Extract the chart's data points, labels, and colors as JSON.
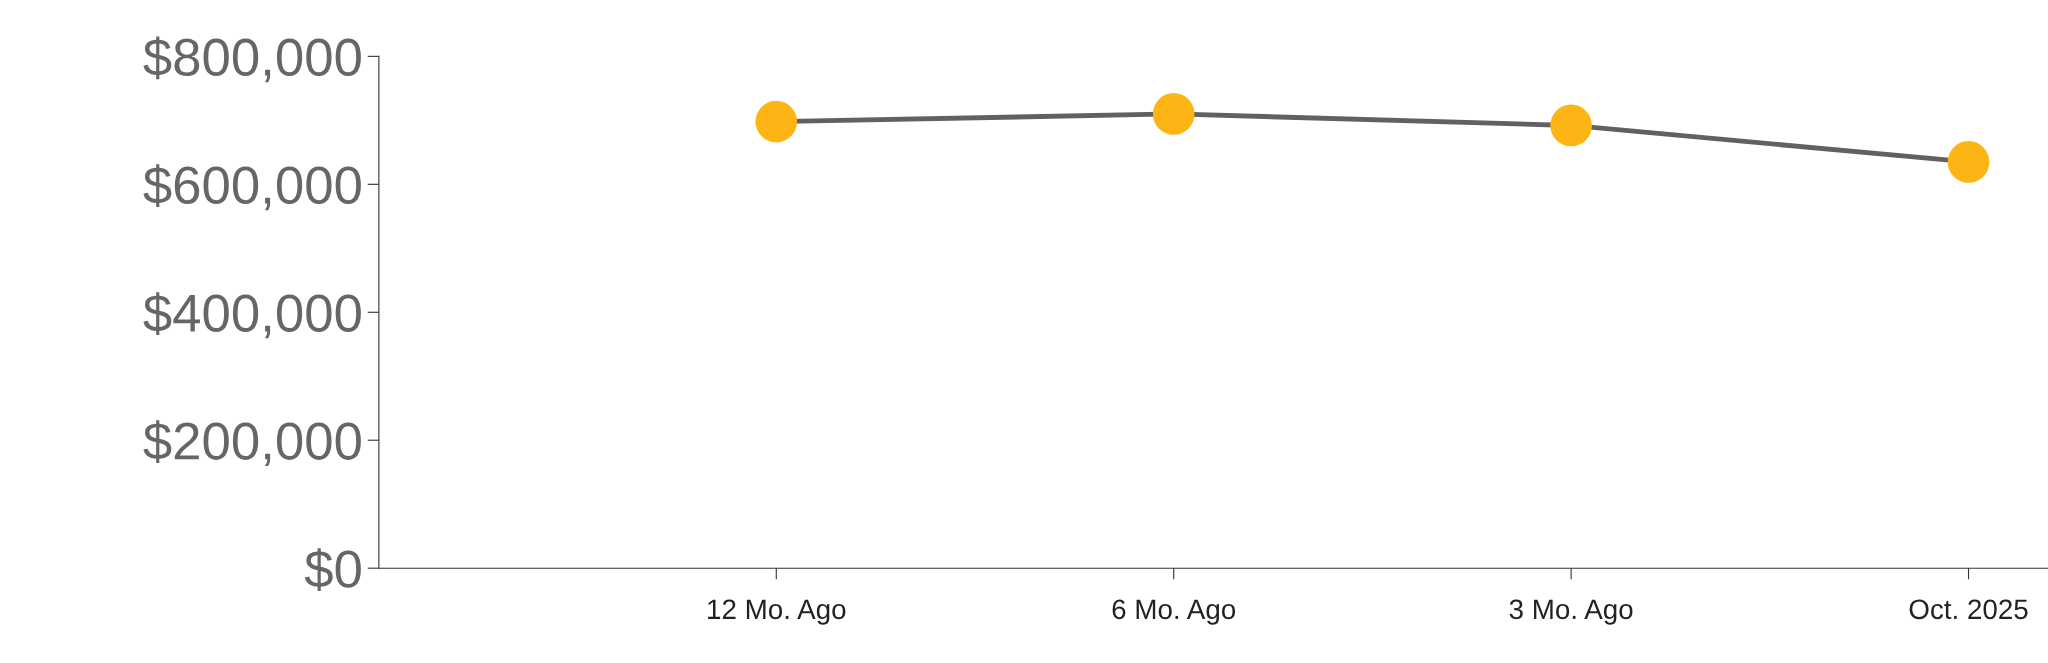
{
  "chart_data": {
    "type": "line",
    "categories": [
      null,
      "12 Mo. Ago",
      "6 Mo. Ago",
      "3 Mo. Ago",
      "Oct. 2025"
    ],
    "series": [
      {
        "color": "#616161",
        "colors": [
          null,
          "#fdb515",
          "#fdb515",
          "#fdb515",
          "#fdb515"
        ],
        "values": [
          null,
          698000,
          710000,
          692000,
          635000
        ]
      }
    ],
    "ylim": [
      0,
      800000
    ],
    "yticks": [
      {
        "value": 0,
        "label": "$0"
      },
      {
        "value": 200000,
        "label": "$200,000"
      },
      {
        "value": 400000,
        "label": "$400,000"
      },
      {
        "value": 600000,
        "label": "$600,000"
      },
      {
        "value": 800000,
        "label": "$800,000"
      }
    ],
    "marker": "circle",
    "line_style": "solid",
    "grid": false,
    "legend": false
  }
}
